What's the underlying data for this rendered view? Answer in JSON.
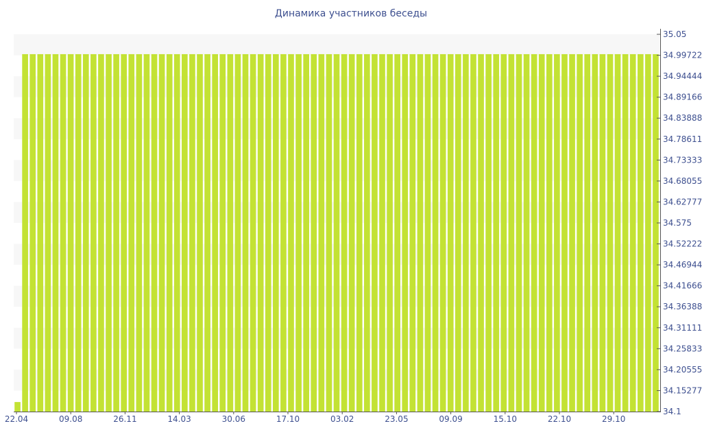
{
  "chart_data": {
    "type": "bar",
    "title": "Динамика участников беседы",
    "xlabel": "",
    "ylabel": "",
    "ylim": [
      34.1,
      35.05
    ],
    "y_ticks": [
      "35.05",
      "34.99722",
      "34.94444",
      "34.89166",
      "34.83888",
      "34.78611",
      "34.73333",
      "34.68055",
      "34.62777",
      "34.575",
      "34.52222",
      "34.46944",
      "34.41666",
      "34.36388",
      "34.31111",
      "34.25833",
      "34.20555",
      "34.15277",
      "34.1"
    ],
    "x_tick_labels": [
      "22.04",
      "09.08",
      "26.11",
      "14.03",
      "30.06",
      "17.10",
      "03.02",
      "23.05",
      "09.09",
      "15.10",
      "22.10",
      "29.10"
    ],
    "y_axis_position": "right",
    "grid": "alternating horizontal bands",
    "bar_color": "#c3e234",
    "series": [
      {
        "values": [
          34.124,
          35,
          35,
          35,
          35,
          35,
          35,
          35,
          35,
          35,
          35,
          35,
          35,
          35,
          35,
          35,
          35,
          35,
          35,
          35,
          35,
          35,
          35,
          35,
          35,
          35,
          35,
          35,
          35,
          35,
          35,
          35,
          35,
          35,
          35,
          35,
          35,
          35,
          35,
          35,
          35,
          35,
          35,
          35,
          35,
          35,
          35,
          35,
          35,
          35,
          35,
          35,
          35,
          35,
          35,
          35,
          35,
          35,
          35,
          35,
          35,
          35,
          35,
          35,
          35,
          35,
          35,
          35,
          35,
          35,
          35,
          35,
          35,
          35,
          35,
          35,
          35,
          35,
          35,
          35,
          35,
          35,
          35,
          35,
          35
        ]
      }
    ]
  }
}
